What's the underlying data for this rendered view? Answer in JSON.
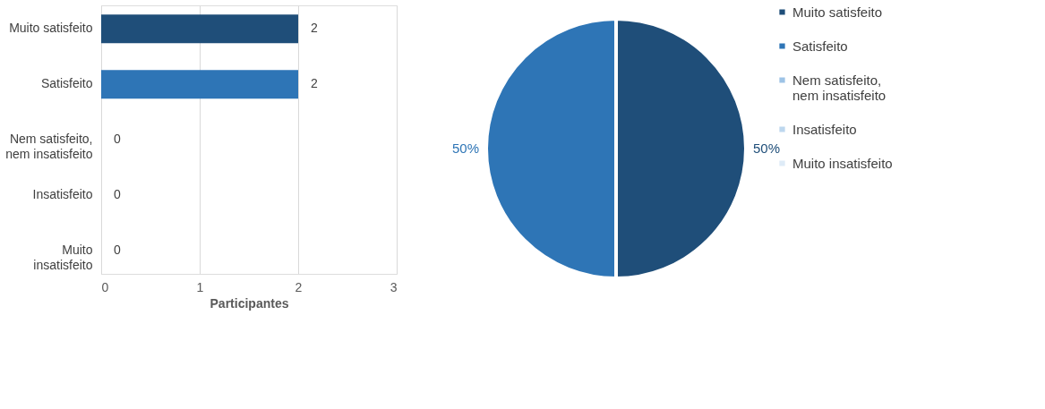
{
  "chart_data": [
    {
      "type": "bar",
      "orientation": "horizontal",
      "categories": [
        "Muito satisfeito",
        "Satisfeito",
        "Nem satisfeito, nem insatisfeito",
        "Insatisfeito",
        "Muito insatisfeito"
      ],
      "values": [
        2,
        2,
        0,
        0,
        0
      ],
      "colors": [
        "#1f4e79",
        "#2e75b6",
        "#9dc3e6",
        "#bdd7ee",
        "#deebf7"
      ],
      "xlim": [
        0,
        3
      ],
      "xticks": [
        0,
        1,
        2,
        3
      ],
      "xlabel": "Participantes",
      "grid": "x",
      "data_labels": true,
      "legend": false
    },
    {
      "type": "pie",
      "categories": [
        "Muito satisfeito",
        "Satisfeito",
        "Nem satisfeito, nem insatisfeito",
        "Insatisfeito",
        "Muito insatisfeito"
      ],
      "values": [
        50,
        50,
        0,
        0,
        0
      ],
      "colors": [
        "#1f4e79",
        "#2e75b6",
        "#9dc3e6",
        "#bdd7ee",
        "#deebf7"
      ],
      "value_labels": [
        "50%",
        "50%",
        null,
        null,
        null
      ],
      "legend": "right"
    }
  ]
}
